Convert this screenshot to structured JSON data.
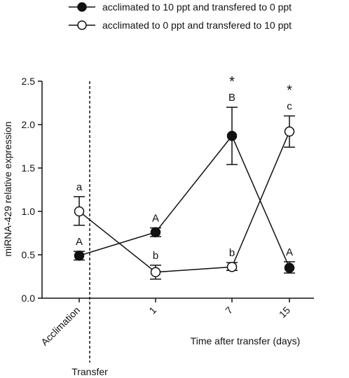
{
  "chart_data": {
    "type": "line",
    "xlabel": "Time after transfer (days)",
    "ylabel": "miRNA-429 relative expression",
    "categories": [
      "Acclimation",
      "1",
      "7",
      "15"
    ],
    "ylim": [
      0,
      2.5
    ],
    "yticks": [
      "0.0",
      "0.5",
      "1.0",
      "1.5",
      "2.0",
      "2.5"
    ],
    "grid": false,
    "legend_position": "top",
    "transfer_label": "Transfer",
    "series": [
      {
        "name": "acclimated to 10 ppt and transfered to 0 ppt",
        "marker": "filled",
        "values": [
          0.49,
          0.76,
          1.87,
          0.35
        ],
        "err_low": [
          0.44,
          0.71,
          1.54,
          0.29
        ],
        "err_high": [
          0.54,
          0.81,
          2.2,
          0.42
        ],
        "letters": [
          "A",
          "A",
          "B",
          "A"
        ],
        "stars": [
          "",
          "",
          "*",
          ""
        ]
      },
      {
        "name": "acclimated to 0 ppt and transfered to 10 ppt",
        "marker": "open",
        "values": [
          1.0,
          0.3,
          0.36,
          1.92
        ],
        "err_low": [
          0.84,
          0.22,
          0.32,
          1.74
        ],
        "err_high": [
          1.17,
          0.38,
          0.41,
          2.1
        ],
        "letters": [
          "a",
          "b",
          "b",
          "c"
        ],
        "stars": [
          "",
          "",
          "",
          "*"
        ]
      }
    ]
  }
}
